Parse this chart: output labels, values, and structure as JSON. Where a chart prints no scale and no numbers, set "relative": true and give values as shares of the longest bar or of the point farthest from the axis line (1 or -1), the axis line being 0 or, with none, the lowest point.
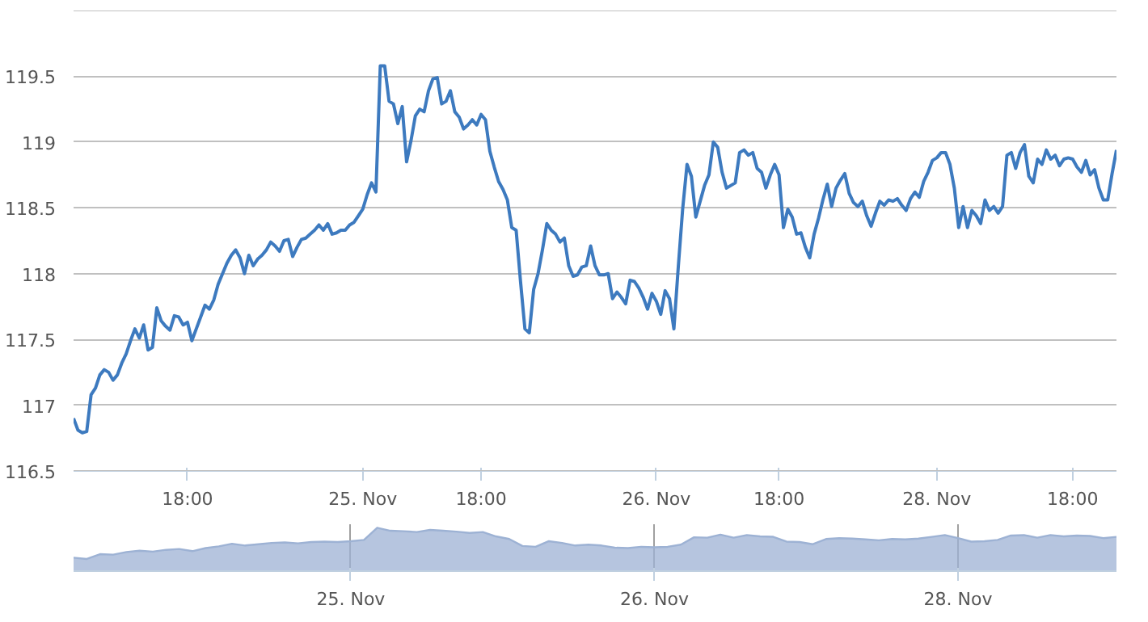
{
  "chart_data": [
    {
      "type": "line",
      "color": "#3d7abf",
      "grid": "y",
      "ylim": [
        116.5,
        120
      ],
      "yticks": [
        116.5,
        117,
        117.5,
        118,
        118.5,
        119,
        119.5,
        {
          "value": 120,
          "label": null
        }
      ],
      "categories": [
        null,
        null,
        null,
        null,
        null,
        null,
        null,
        null,
        null,
        null,
        null,
        null,
        null,
        null,
        null,
        null,
        null,
        null,
        null,
        null,
        null,
        null,
        null,
        null,
        null,
        null,
        "18:00",
        null,
        null,
        null,
        null,
        null,
        null,
        null,
        null,
        null,
        null,
        null,
        null,
        null,
        null,
        null,
        null,
        null,
        null,
        null,
        null,
        null,
        null,
        null,
        null,
        null,
        null,
        null,
        null,
        null,
        null,
        null,
        null,
        null,
        null,
        null,
        null,
        null,
        null,
        null,
        "25. Nov",
        null,
        null,
        null,
        null,
        null,
        null,
        null,
        null,
        null,
        null,
        null,
        null,
        null,
        null,
        null,
        null,
        null,
        null,
        null,
        null,
        null,
        null,
        null,
        null,
        null,
        null,
        "18:00",
        null,
        null,
        null,
        null,
        null,
        null,
        null,
        null,
        null,
        null,
        null,
        null,
        null,
        null,
        null,
        null,
        null,
        null,
        null,
        null,
        null,
        null,
        null,
        null,
        null,
        null,
        null,
        null,
        null,
        null,
        null,
        null,
        null,
        null,
        null,
        null,
        null,
        null,
        null,
        "26. Nov",
        null,
        null,
        null,
        null,
        null,
        null,
        null,
        null,
        null,
        null,
        null,
        null,
        null,
        null,
        null,
        null,
        null,
        null,
        null,
        null,
        null,
        null,
        null,
        null,
        null,
        null,
        null,
        "18:00",
        null,
        null,
        null,
        null,
        null,
        null,
        null,
        null,
        null,
        null,
        null,
        null,
        null,
        null,
        null,
        null,
        null,
        null,
        null,
        null,
        null,
        null,
        null,
        null,
        null,
        null,
        null,
        null,
        null,
        null,
        null,
        null,
        null,
        null,
        null,
        "28. Nov",
        null,
        null,
        null,
        null,
        null,
        null,
        null,
        null,
        null,
        null,
        null,
        null,
        null,
        null,
        null,
        null,
        null,
        null,
        null,
        null,
        null,
        null,
        null,
        null,
        null,
        null,
        null,
        null,
        null,
        null,
        "18:00",
        null,
        null,
        null,
        null,
        null,
        null,
        null,
        null,
        null,
        null
      ],
      "values": [
        116.9,
        116.81,
        116.79,
        116.8,
        117.08,
        117.13,
        117.23,
        117.27,
        117.25,
        117.19,
        117.23,
        117.32,
        117.39,
        117.49,
        117.58,
        117.51,
        117.61,
        117.42,
        117.44,
        117.74,
        117.64,
        117.6,
        117.57,
        117.68,
        117.67,
        117.61,
        117.63,
        117.49,
        117.58,
        117.67,
        117.76,
        117.73,
        117.8,
        117.92,
        118.0,
        118.08,
        118.14,
        118.18,
        118.12,
        118.0,
        118.14,
        118.06,
        118.11,
        118.14,
        118.18,
        118.24,
        118.21,
        118.17,
        118.25,
        118.26,
        118.13,
        118.2,
        118.26,
        118.27,
        118.3,
        118.33,
        118.37,
        118.33,
        118.38,
        118.3,
        118.31,
        118.33,
        118.33,
        118.37,
        118.39,
        118.44,
        118.49,
        118.6,
        118.69,
        118.62,
        119.58,
        119.58,
        119.31,
        119.29,
        119.14,
        119.27,
        118.85,
        119.01,
        119.2,
        119.25,
        119.23,
        119.39,
        119.48,
        119.49,
        119.29,
        119.31,
        119.39,
        119.23,
        119.19,
        119.1,
        119.13,
        119.17,
        119.13,
        119.21,
        119.17,
        118.93,
        118.81,
        118.7,
        118.64,
        118.56,
        118.35,
        118.33,
        117.94,
        117.58,
        117.55,
        117.88,
        118.0,
        118.18,
        118.38,
        118.33,
        118.3,
        118.24,
        118.27,
        118.06,
        117.98,
        117.99,
        118.05,
        118.06,
        118.21,
        118.06,
        117.99,
        117.99,
        118.0,
        117.81,
        117.86,
        117.82,
        117.77,
        117.95,
        117.94,
        117.89,
        117.82,
        117.73,
        117.85,
        117.79,
        117.69,
        117.87,
        117.81,
        117.58,
        118.05,
        118.49,
        118.83,
        118.74,
        118.43,
        118.55,
        118.67,
        118.75,
        119.0,
        118.96,
        118.77,
        118.65,
        118.67,
        118.69,
        118.92,
        118.94,
        118.9,
        118.92,
        118.8,
        118.77,
        118.65,
        118.75,
        118.83,
        118.75,
        118.35,
        118.49,
        118.43,
        118.3,
        118.31,
        118.2,
        118.12,
        118.3,
        118.42,
        118.56,
        118.68,
        118.51,
        118.65,
        118.71,
        118.76,
        118.61,
        118.54,
        118.51,
        118.55,
        118.44,
        118.36,
        118.46,
        118.55,
        118.52,
        118.56,
        118.55,
        118.57,
        118.52,
        118.48,
        118.57,
        118.62,
        118.58,
        118.7,
        118.77,
        118.86,
        118.88,
        118.92,
        118.92,
        118.83,
        118.65,
        118.35,
        118.51,
        118.35,
        118.48,
        118.44,
        118.38,
        118.56,
        118.48,
        118.51,
        118.46,
        118.51,
        118.9,
        118.92,
        118.8,
        118.92,
        118.98,
        118.74,
        118.69,
        118.87,
        118.83,
        118.94,
        118.87,
        118.9,
        118.82,
        118.87,
        118.88,
        118.87,
        118.81,
        118.77,
        118.86,
        118.75,
        118.79,
        118.65,
        118.56,
        118.56,
        118.76,
        118.94
      ]
    },
    {
      "type": "area",
      "color": "#9db2d4",
      "grid": "x",
      "tick_labels": "x",
      "relative": true,
      "categories": [
        null,
        null,
        null,
        null,
        null,
        null,
        null,
        null,
        null,
        null,
        null,
        null,
        null,
        null,
        null,
        null,
        null,
        null,
        null,
        null,
        null,
        "25. Nov",
        null,
        null,
        null,
        null,
        null,
        null,
        null,
        null,
        null,
        null,
        null,
        null,
        null,
        null,
        null,
        null,
        null,
        null,
        null,
        null,
        null,
        null,
        "26. Nov",
        null,
        null,
        null,
        null,
        null,
        null,
        null,
        null,
        null,
        null,
        null,
        null,
        null,
        null,
        null,
        null,
        null,
        null,
        null,
        null,
        null,
        null,
        "28. Nov",
        null,
        null,
        null,
        null,
        null,
        null,
        null,
        null,
        null,
        null,
        null,
        null
      ],
      "values": [
        0.31,
        0.28,
        0.39,
        0.38,
        0.44,
        0.47,
        0.45,
        0.49,
        0.51,
        0.46,
        0.53,
        0.57,
        0.63,
        0.59,
        0.62,
        0.65,
        0.66,
        0.64,
        0.67,
        0.68,
        0.67,
        0.69,
        0.72,
        1.0,
        0.93,
        0.92,
        0.9,
        0.95,
        0.93,
        0.91,
        0.88,
        0.9,
        0.8,
        0.74,
        0.58,
        0.56,
        0.69,
        0.65,
        0.59,
        0.61,
        0.59,
        0.54,
        0.53,
        0.56,
        0.55,
        0.56,
        0.61,
        0.78,
        0.77,
        0.84,
        0.77,
        0.83,
        0.8,
        0.79,
        0.68,
        0.67,
        0.62,
        0.74,
        0.76,
        0.75,
        0.73,
        0.71,
        0.74,
        0.73,
        0.75,
        0.79,
        0.83,
        0.76,
        0.68,
        0.69,
        0.72,
        0.82,
        0.83,
        0.77,
        0.83,
        0.8,
        0.82,
        0.81,
        0.76,
        0.79
      ]
    }
  ]
}
